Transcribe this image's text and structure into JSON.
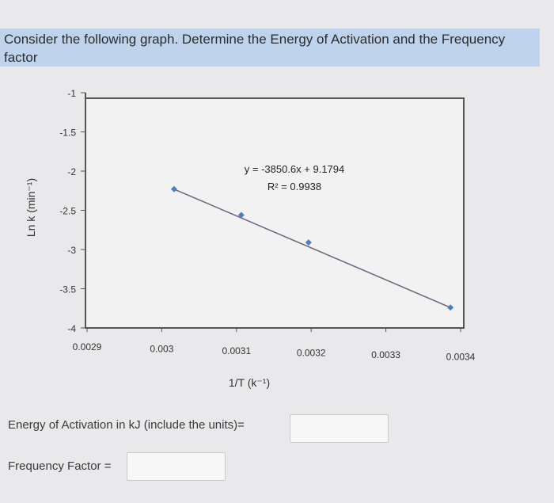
{
  "question": {
    "text": "Consider the following graph. Determine the Energy of Activation and the Frequency factor"
  },
  "chart_data": {
    "type": "scatter",
    "title": "",
    "xlabel": "1/T (k⁻¹)",
    "ylabel": "Ln k (min⁻¹)",
    "xlim": [
      0.0029,
      0.0034
    ],
    "ylim": [
      -4,
      -1
    ],
    "x_ticks": [
      "0.0029",
      "0.003",
      "0.0031",
      "0.0032",
      "0.0033",
      "0.0034"
    ],
    "y_ticks": [
      "-1",
      "-1.5",
      "-2",
      "-2.5",
      "-3",
      "-3.5",
      "-4"
    ],
    "points": [
      {
        "x": 0.002955,
        "y": -2.23
      },
      {
        "x": 0.003045,
        "y": -2.56
      },
      {
        "x": 0.003135,
        "y": -2.91
      },
      {
        "x": 0.003325,
        "y": -3.74
      }
    ],
    "trendline": {
      "equation": "y = -3850.6x + 9.1794",
      "r_squared": "R² = 0.9938",
      "x_start": 0.002955,
      "x_end": 0.003325
    },
    "grid": false,
    "colors": {
      "point": "#4a7fc0",
      "line": "#66667a",
      "axis": "#555555"
    }
  },
  "form": {
    "activation_label": "Energy of Activation in kJ  (include the units)=",
    "activation_value": "",
    "frequency_label": "Frequency Factor =",
    "frequency_value": ""
  }
}
